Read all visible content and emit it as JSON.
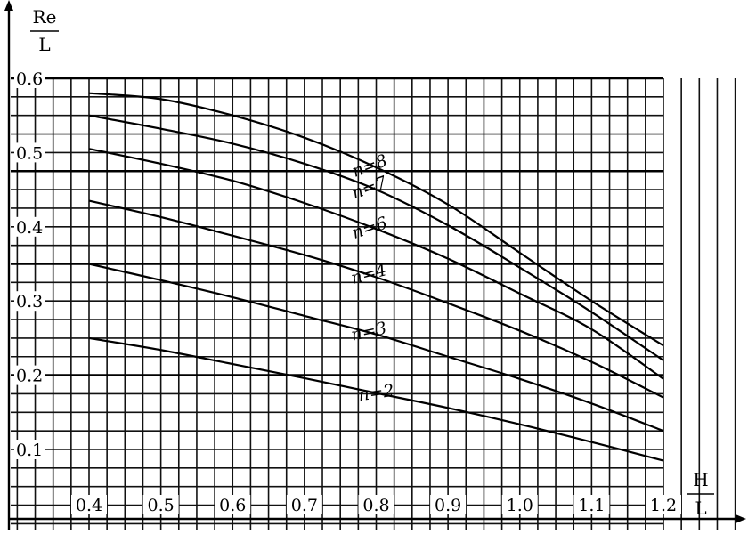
{
  "chart_data": {
    "type": "line",
    "xlabel": {
      "numerator": "H",
      "denominator": "L"
    },
    "ylabel": {
      "numerator": "Re",
      "denominator": "L"
    },
    "xlim": [
      0.4,
      1.2
    ],
    "ylim": [
      0.05,
      0.6
    ],
    "xticks": [
      "0.4",
      "0.5",
      "0.6",
      "0.7",
      "0.8",
      "0.9",
      "1.0",
      "1.1",
      "1.2"
    ],
    "yticks": [
      "0.6",
      "0.5",
      "0.4",
      "0.3",
      "0.2",
      "0.1"
    ],
    "grid": true,
    "series": [
      {
        "name": "n=2",
        "x": [
          0.4,
          0.5,
          0.6,
          0.7,
          0.8,
          0.9,
          1.0,
          1.1,
          1.2
        ],
        "y": [
          0.25,
          0.234,
          0.215,
          0.196,
          0.176,
          0.156,
          0.134,
          0.11,
          0.085
        ]
      },
      {
        "name": "n=3",
        "x": [
          0.4,
          0.5,
          0.6,
          0.7,
          0.8,
          0.9,
          1.0,
          1.1,
          1.2
        ],
        "y": [
          0.35,
          0.328,
          0.305,
          0.28,
          0.255,
          0.225,
          0.195,
          0.162,
          0.125
        ]
      },
      {
        "name": "n=4",
        "x": [
          0.4,
          0.5,
          0.6,
          0.7,
          0.8,
          0.9,
          1.0,
          1.1,
          1.2
        ],
        "y": [
          0.435,
          0.413,
          0.388,
          0.362,
          0.332,
          0.297,
          0.26,
          0.218,
          0.17
        ]
      },
      {
        "name": "n=6",
        "x": [
          0.4,
          0.5,
          0.6,
          0.7,
          0.8,
          0.9,
          1.0,
          1.1,
          1.2
        ],
        "y": [
          0.505,
          0.485,
          0.462,
          0.432,
          0.397,
          0.357,
          0.31,
          0.262,
          0.195
        ]
      },
      {
        "name": "n=7",
        "x": [
          0.4,
          0.5,
          0.6,
          0.7,
          0.8,
          0.9,
          1.0,
          1.1,
          1.2
        ],
        "y": [
          0.55,
          0.532,
          0.512,
          0.485,
          0.45,
          0.402,
          0.345,
          0.285,
          0.22
        ]
      },
      {
        "name": "n=8",
        "x": [
          0.4,
          0.5,
          0.6,
          0.7,
          0.8,
          0.9,
          1.0,
          1.1,
          1.2
        ],
        "y": [
          0.58,
          0.572,
          0.55,
          0.52,
          0.48,
          0.43,
          0.365,
          0.3,
          0.24
        ]
      }
    ]
  }
}
